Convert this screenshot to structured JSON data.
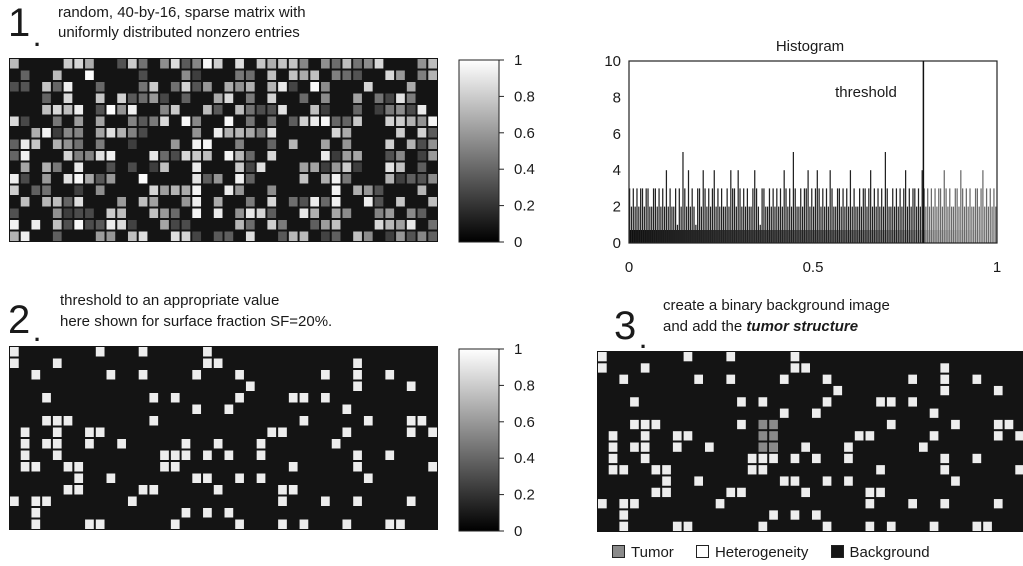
{
  "panel1": {
    "number": "1",
    "caption_line1": "random, 40-by-16, sparse matrix with",
    "caption_line2": "uniformly distributed nonzero entries",
    "colorbar_ticks": [
      "1",
      "0.8",
      "0.6",
      "0.4",
      "0.2",
      "0"
    ]
  },
  "panel2": {
    "number": "2",
    "caption_line1": "threshold to an appropriate value",
    "caption_line2": "here shown for surface fraction SF=20%.",
    "colorbar_ticks": [
      "1",
      "0.8",
      "0.6",
      "0.4",
      "0.2",
      "0"
    ]
  },
  "panel3": {
    "number": "3",
    "caption_line1": "create a binary background image",
    "caption_line2_prefix": "and add the ",
    "caption_line2_emph": "tumor structure",
    "legend": [
      {
        "label": "Tumor",
        "color": "#8a8a8a"
      },
      {
        "label": "Heterogeneity",
        "color": "#ffffff"
      },
      {
        "label": "Background",
        "color": "#151515"
      }
    ]
  },
  "chart_data": {
    "type": "bar",
    "title": "Histogram",
    "xlabel": "",
    "ylabel": "",
    "xlim": [
      0,
      1
    ],
    "ylim": [
      0,
      10
    ],
    "xticks": [
      "0",
      "0.5",
      "1"
    ],
    "yticks": [
      "0",
      "2",
      "4",
      "6",
      "8",
      "10"
    ],
    "annotation": "threshold",
    "threshold_x": 0.8,
    "bin_width": 0.005,
    "values": [
      3,
      2,
      3,
      2,
      3,
      2,
      3,
      3,
      2,
      3,
      3,
      2,
      2,
      3,
      3,
      2,
      3,
      2,
      3,
      2,
      4,
      2,
      3,
      2,
      2,
      3,
      1,
      3,
      2,
      5,
      3,
      2,
      4,
      2,
      3,
      2,
      1,
      3,
      3,
      2,
      4,
      3,
      2,
      3,
      2,
      3,
      4,
      2,
      3,
      2,
      3,
      2,
      2,
      3,
      2,
      4,
      3,
      3,
      2,
      4,
      3,
      2,
      3,
      2,
      3,
      2,
      2,
      3,
      4,
      3,
      2,
      1,
      3,
      3,
      2,
      2,
      3,
      2,
      3,
      2,
      3,
      2,
      3,
      2,
      4,
      3,
      2,
      3,
      2,
      5,
      3,
      2,
      2,
      3,
      2,
      3,
      3,
      4,
      2,
      3,
      2,
      3,
      4,
      3,
      2,
      3,
      2,
      3,
      2,
      4,
      3,
      2,
      2,
      3,
      3,
      2,
      3,
      2,
      3,
      2,
      4,
      2,
      3,
      2,
      2,
      3,
      2,
      3,
      3,
      2,
      3,
      4,
      2,
      3,
      2,
      3,
      2,
      3,
      2,
      5,
      3,
      2,
      2,
      3,
      2,
      3,
      2,
      3,
      2,
      3,
      4,
      2,
      3,
      2,
      3,
      3,
      2,
      3,
      2,
      4,
      3,
      2,
      3,
      2,
      3,
      2,
      3,
      2,
      3,
      3,
      2,
      4,
      3,
      2,
      3,
      2,
      2,
      3,
      3,
      2,
      4,
      3,
      2,
      3,
      2,
      3,
      2,
      2,
      3,
      3,
      2,
      3,
      4,
      2,
      3,
      2,
      3,
      2,
      3,
      2
    ]
  }
}
